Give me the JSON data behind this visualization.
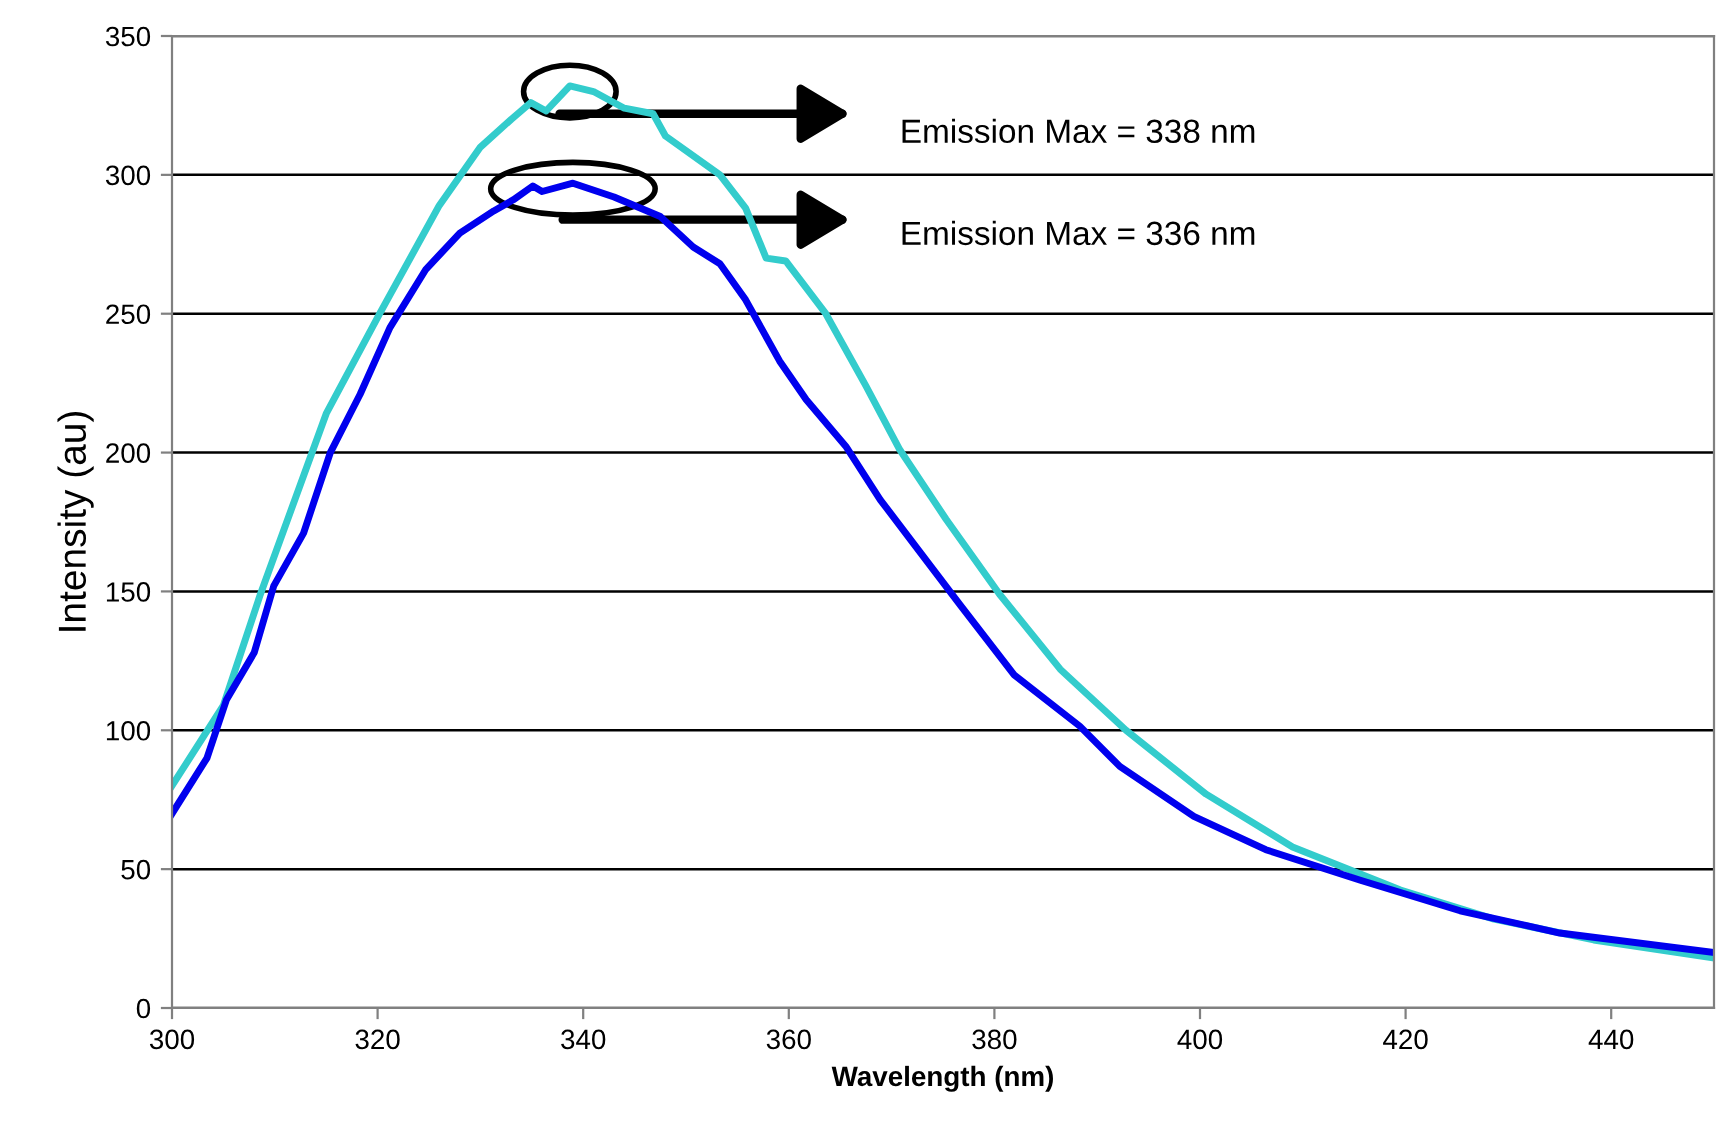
{
  "chart_data": {
    "type": "line",
    "xlabel": "Wavelength (nm)",
    "ylabel": "Intensity (au)",
    "xlim": [
      300,
      450
    ],
    "xticks": [
      300,
      320,
      340,
      360,
      380,
      400,
      420,
      440
    ],
    "ylim": [
      0,
      350
    ],
    "yticks": [
      0,
      50,
      100,
      150,
      200,
      250,
      300,
      350
    ],
    "grid": "y",
    "legend": false,
    "marker": "none",
    "line_style": "solid",
    "series": [
      {
        "color": "#33cccc",
        "x": [
          300,
          305,
          308.6,
          315,
          320.2,
          326,
          330,
          333,
          334.9,
          336.4,
          338.7,
          341,
          344,
          346.8,
          348,
          353.3,
          355.8,
          357.8,
          359.7,
          363.6,
          367.5,
          370.8,
          375.3,
          380.5,
          386.4,
          392.8,
          400.6,
          409,
          419.5,
          428.6,
          438.3,
          450
        ],
        "values": [
          80,
          109,
          149,
          214,
          250,
          289,
          310,
          320,
          326,
          323,
          332,
          330,
          324,
          322,
          314,
          300,
          288,
          270,
          269,
          250,
          224,
          201,
          176,
          149,
          122,
          100,
          77,
          58,
          42.5,
          32,
          24.5,
          18
        ]
      },
      {
        "color": "#0000ee",
        "x": [
          300,
          303.4,
          305.3,
          308,
          309.9,
          312.8,
          315.4,
          318.3,
          321.2,
          324.7,
          328,
          331.3,
          333.2,
          335.1,
          336,
          339,
          343,
          347.5,
          350.7,
          353.3,
          355.8,
          359.1,
          361.7,
          365.6,
          368.9,
          372.8,
          376.7,
          381.9,
          388.3,
          392.2,
          399.4,
          406.4,
          415.6,
          425.3,
          435,
          450
        ],
        "values": [
          70,
          90,
          111,
          128,
          152,
          171,
          200,
          221,
          245,
          266,
          279,
          287,
          291,
          296,
          294,
          297,
          292,
          285,
          274,
          268,
          255,
          233,
          219,
          202,
          183,
          164,
          145,
          120,
          101.5,
          87,
          69,
          57,
          46,
          35,
          27,
          20
        ]
      }
    ],
    "annotations": [
      "Emission Max = 338 nm",
      "Emission Max = 336 nm"
    ]
  }
}
